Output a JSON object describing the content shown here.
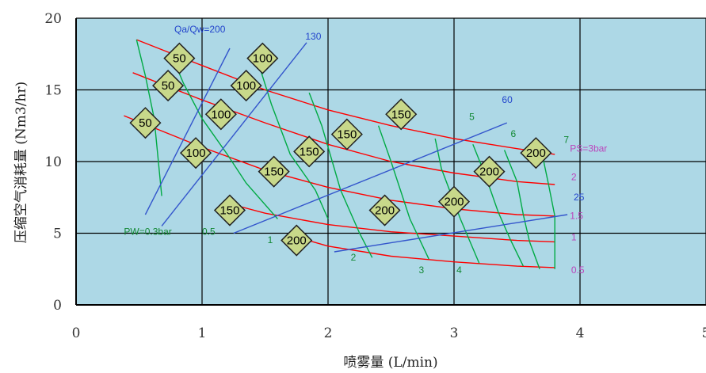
{
  "chart_data": {
    "type": "line",
    "title": "",
    "xlabel": "喷雾量 (L/min)",
    "ylabel": "压缩空气消耗量 (Nm3/hr)",
    "xlim": [
      0,
      5
    ],
    "ylim": [
      0,
      20
    ],
    "xticks": [
      "0",
      "1",
      "2",
      "3",
      "4",
      "5"
    ],
    "yticks": [
      "0",
      "5",
      "10",
      "15",
      "20"
    ],
    "grid": true,
    "background_color": "#add8e6",
    "series": [
      {
        "name": "PS=3bar",
        "color": "#ff0000",
        "x": [
          0.48,
          1.0,
          1.5,
          2.0,
          2.5,
          3.0,
          3.5,
          3.8
        ],
        "y": [
          18.5,
          16.7,
          15.0,
          13.6,
          12.5,
          11.6,
          10.9,
          10.5
        ]
      },
      {
        "name": "2",
        "color": "#ff0000",
        "x": [
          0.45,
          1.0,
          1.5,
          2.0,
          2.5,
          3.0,
          3.5,
          3.8
        ],
        "y": [
          16.2,
          14.3,
          12.7,
          11.2,
          10.0,
          9.2,
          8.6,
          8.4
        ]
      },
      {
        "name": "1.5",
        "color": "#ff0000",
        "x": [
          0.38,
          1.0,
          1.5,
          2.0,
          2.5,
          3.0,
          3.5,
          3.8
        ],
        "y": [
          13.2,
          11.0,
          9.4,
          8.2,
          7.3,
          6.7,
          6.3,
          6.2
        ]
      },
      {
        "name": "1",
        "color": "#ff0000",
        "x": [
          1.2,
          1.5,
          2.0,
          2.5,
          3.0,
          3.5,
          3.8
        ],
        "y": [
          7.1,
          6.4,
          5.6,
          5.1,
          4.8,
          4.5,
          4.4
        ]
      },
      {
        "name": "0.5",
        "color": "#ff0000",
        "x": [
          1.8,
          2.0,
          2.5,
          3.0,
          3.5,
          3.8
        ],
        "y": [
          4.6,
          4.1,
          3.4,
          3.0,
          2.7,
          2.6
        ]
      },
      {
        "name": "PW=0.3bar",
        "color": "#00aa44",
        "x": [
          0.48,
          0.55,
          0.62,
          0.68
        ],
        "y": [
          18.5,
          16.0,
          13.0,
          7.6
        ]
      },
      {
        "name": "0.5",
        "color": "#00aa44",
        "x": [
          0.75,
          0.85,
          1.0,
          1.2,
          1.35,
          1.6
        ],
        "y": [
          17.6,
          15.5,
          13.0,
          10.5,
          8.5,
          6.0
        ]
      },
      {
        "name": "1",
        "color": "#00aa44",
        "x": [
          1.45,
          1.55,
          1.7,
          1.9,
          2.0
        ],
        "y": [
          16.8,
          14.0,
          10.5,
          8.0,
          6.0
        ]
      },
      {
        "name": "2",
        "color": "#00aa44",
        "x": [
          1.85,
          1.95,
          2.1,
          2.25,
          2.35
        ],
        "y": [
          14.8,
          12.5,
          8.0,
          5.0,
          3.3
        ]
      },
      {
        "name": "3",
        "color": "#00aa44",
        "x": [
          2.4,
          2.5,
          2.65,
          2.8
        ],
        "y": [
          12.5,
          10.0,
          6.0,
          3.2
        ]
      },
      {
        "name": "4",
        "color": "#00aa44",
        "x": [
          2.85,
          2.9,
          3.05,
          3.2
        ],
        "y": [
          11.6,
          9.5,
          6.0,
          2.9
        ]
      },
      {
        "name": "5",
        "color": "#00aa44",
        "x": [
          3.15,
          3.25,
          3.35,
          3.45,
          3.55
        ],
        "y": [
          11.2,
          9.0,
          6.5,
          4.5,
          2.7
        ]
      },
      {
        "name": "6",
        "color": "#00aa44",
        "x": [
          3.4,
          3.5,
          3.55,
          3.6,
          3.68
        ],
        "y": [
          10.8,
          8.6,
          6.3,
          4.4,
          2.5
        ]
      },
      {
        "name": "7",
        "color": "#00aa44",
        "x": [
          3.7,
          3.75,
          3.8,
          3.8,
          3.8
        ],
        "y": [
          10.5,
          8.4,
          6.2,
          4.4,
          2.5
        ]
      },
      {
        "name": "Qa/Qw=200",
        "color": "#3355cc",
        "x": [
          0.55,
          1.22
        ],
        "y": [
          6.3,
          17.9
        ]
      },
      {
        "name": "130",
        "color": "#3355cc",
        "x": [
          0.68,
          1.83
        ],
        "y": [
          5.5,
          18.3
        ]
      },
      {
        "name": "60",
        "color": "#3355cc",
        "x": [
          1.25,
          3.42
        ],
        "y": [
          5.0,
          12.7
        ]
      },
      {
        "name": "25",
        "color": "#3355cc",
        "x": [
          2.05,
          3.9
        ],
        "y": [
          3.7,
          6.3
        ]
      }
    ],
    "diamond_labels": [
      {
        "text": "50",
        "x": 0.82,
        "y": 17.2
      },
      {
        "text": "100",
        "x": 1.48,
        "y": 17.2
      },
      {
        "text": "50",
        "x": 0.73,
        "y": 15.3
      },
      {
        "text": "100",
        "x": 1.35,
        "y": 15.3
      },
      {
        "text": "100",
        "x": 1.15,
        "y": 13.3
      },
      {
        "text": "50",
        "x": 0.55,
        "y": 12.7
      },
      {
        "text": "150",
        "x": 2.58,
        "y": 13.3
      },
      {
        "text": "150",
        "x": 2.15,
        "y": 11.9
      },
      {
        "text": "100",
        "x": 0.95,
        "y": 10.6
      },
      {
        "text": "150",
        "x": 1.85,
        "y": 10.7
      },
      {
        "text": "200",
        "x": 3.65,
        "y": 10.6
      },
      {
        "text": "150",
        "x": 1.57,
        "y": 9.3
      },
      {
        "text": "200",
        "x": 3.28,
        "y": 9.3
      },
      {
        "text": "200",
        "x": 3.0,
        "y": 7.2
      },
      {
        "text": "150",
        "x": 1.22,
        "y": 6.6
      },
      {
        "text": "200",
        "x": 2.45,
        "y": 6.6
      },
      {
        "text": "200",
        "x": 1.75,
        "y": 4.5
      }
    ],
    "annotations": [
      {
        "text": "Qa/Qw=200",
        "x": 0.78,
        "y": 19.0,
        "color": "#2244cc"
      },
      {
        "text": "130",
        "x": 1.82,
        "y": 18.5,
        "color": "#2244cc"
      },
      {
        "text": "60",
        "x": 3.38,
        "y": 14.1,
        "color": "#2244cc"
      },
      {
        "text": "25",
        "x": 3.95,
        "y": 7.3,
        "color": "#2244cc"
      },
      {
        "text": "PW=0.3bar",
        "x": 0.38,
        "y": 4.9,
        "color": "#118833"
      },
      {
        "text": "0.5",
        "x": 1.0,
        "y": 4.9,
        "color": "#118833"
      },
      {
        "text": "1",
        "x": 1.52,
        "y": 4.3,
        "color": "#118833"
      },
      {
        "text": "2",
        "x": 2.18,
        "y": 3.1,
        "color": "#118833"
      },
      {
        "text": "3",
        "x": 2.72,
        "y": 2.2,
        "color": "#118833"
      },
      {
        "text": "4",
        "x": 3.02,
        "y": 2.2,
        "color": "#118833"
      },
      {
        "text": "5",
        "x": 3.12,
        "y": 12.9,
        "color": "#118833"
      },
      {
        "text": "6",
        "x": 3.45,
        "y": 11.7,
        "color": "#118833"
      },
      {
        "text": "7",
        "x": 3.87,
        "y": 11.3,
        "color": "#118833"
      },
      {
        "text": "PS=3bar",
        "x": 3.92,
        "y": 10.7,
        "color": "#bb44bb"
      },
      {
        "text": "2",
        "x": 3.93,
        "y": 8.7,
        "color": "#bb44bb"
      },
      {
        "text": "1.5",
        "x": 3.92,
        "y": 6.0,
        "color": "#bb44bb"
      },
      {
        "text": "1",
        "x": 3.93,
        "y": 4.5,
        "color": "#bb44bb"
      },
      {
        "text": "0.5",
        "x": 3.93,
        "y": 2.2,
        "color": "#bb44bb"
      }
    ]
  }
}
